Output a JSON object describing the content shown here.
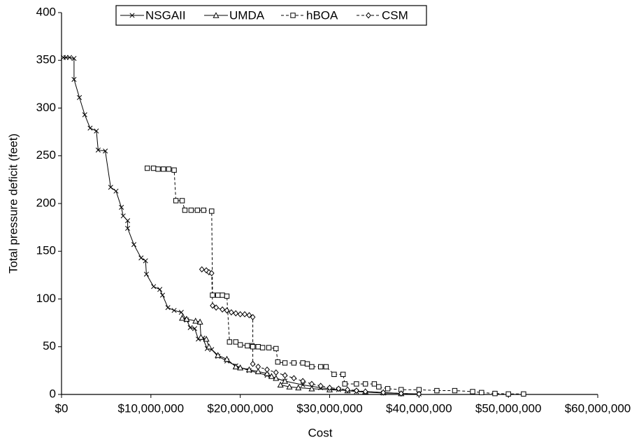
{
  "chart_data": {
    "type": "line",
    "xlabel": "Cost",
    "ylabel": "Total pressure deficit (feet)",
    "xlim": [
      0,
      60000000
    ],
    "ylim": [
      0,
      400
    ],
    "xticks": [
      {
        "value": 0,
        "label": "$0"
      },
      {
        "value": 10000000,
        "label": "$10,000,000"
      },
      {
        "value": 20000000,
        "label": "$20,000,000"
      },
      {
        "value": 30000000,
        "label": "$30,000,000"
      },
      {
        "value": 40000000,
        "label": "$40,000,000"
      },
      {
        "value": 50000000,
        "label": "$50,000,000"
      },
      {
        "value": 60000000,
        "label": "$60,000,000"
      }
    ],
    "yticks": [
      0,
      50,
      100,
      150,
      200,
      250,
      300,
      350,
      400
    ],
    "grid": false,
    "legend": "top",
    "series": [
      {
        "name": "NSGAII",
        "color": "#000000",
        "marker": "x",
        "dash": "solid",
        "x": [
          200000,
          500000,
          900000,
          1400000,
          1400000,
          2000000,
          2600000,
          3200000,
          3900000,
          4100000,
          4900000,
          5500000,
          6100000,
          6700000,
          6900000,
          7400000,
          7400000,
          8100000,
          8900000,
          9400000,
          9500000,
          10300000,
          11000000,
          11300000,
          11900000,
          12600000,
          13400000,
          14000000,
          14400000,
          14900000,
          15300000,
          15800000,
          16300000,
          16800000,
          17500000,
          18500000,
          19500000,
          21000000,
          23000000,
          25000000,
          27000000,
          29000000,
          31000000,
          33000000,
          36000000,
          40000000
        ],
        "values": [
          353,
          353,
          353,
          352,
          330,
          311,
          293,
          279,
          276,
          256,
          255,
          217,
          213,
          196,
          187,
          182,
          174,
          157,
          143,
          140,
          126,
          113,
          110,
          104,
          91,
          88,
          86,
          78,
          70,
          69,
          58,
          59,
          48,
          47,
          40,
          35,
          30,
          25,
          20,
          14,
          10,
          7,
          5,
          3,
          1.5,
          0.5
        ]
      },
      {
        "name": "UMDA",
        "color": "#000000",
        "marker": "triangle",
        "dash": "solid",
        "x": [
          13500000,
          14000000,
          15000000,
          15500000,
          15600000,
          16200000,
          16500000,
          17500000,
          18500000,
          19500000,
          20000000,
          21000000,
          22000000,
          23000000,
          23500000,
          24000000,
          25000000,
          24500000,
          25500000,
          26500000,
          28000000,
          30000000,
          32000000,
          34000000,
          36000000,
          38000000
        ],
        "values": [
          80,
          79,
          77,
          76,
          60,
          58,
          50,
          41,
          37,
          29,
          28,
          26,
          24,
          22,
          19,
          17,
          14,
          10,
          8,
          7,
          6,
          5,
          4,
          3,
          2,
          1
        ]
      },
      {
        "name": "hBOA",
        "color": "#000000",
        "marker": "square",
        "dash": "dashed",
        "x": [
          9600000,
          10300000,
          10800000,
          11400000,
          12000000,
          12600000,
          12800000,
          13500000,
          13800000,
          14500000,
          15200000,
          15900000,
          16800000,
          16900000,
          17500000,
          18000000,
          18500000,
          18800000,
          19500000,
          20000000,
          20800000,
          21300000,
          21400000,
          22000000,
          22500000,
          23200000,
          24000000,
          24200000,
          25000000,
          26000000,
          27000000,
          27500000,
          28000000,
          29000000,
          29600000,
          30500000,
          31500000,
          31700000,
          33000000,
          34000000,
          35000000,
          35500000,
          36500000,
          38000000,
          40000000,
          42000000,
          44000000,
          46000000,
          47000000,
          48500000,
          50000000,
          51700000
        ],
        "values": [
          237,
          237,
          236,
          236,
          236,
          235,
          203,
          203,
          193,
          193,
          193,
          193,
          192,
          104,
          104,
          104,
          103,
          55,
          55,
          52,
          51,
          51,
          50,
          50,
          49,
          49,
          48,
          34,
          33,
          33,
          33,
          32,
          29,
          29,
          29,
          21,
          21,
          11,
          11,
          11,
          11,
          8,
          6,
          5,
          5,
          4,
          4,
          3,
          2,
          1,
          0.5,
          0.5
        ]
      },
      {
        "name": "CSM",
        "color": "#000000",
        "marker": "diamond",
        "dash": "dashed",
        "x": [
          15700000,
          16200000,
          16500000,
          16800000,
          16900000,
          17300000,
          18000000,
          18500000,
          19000000,
          19500000,
          20000000,
          20500000,
          21000000,
          21400000,
          21400000,
          22000000,
          23000000,
          24000000,
          25000000,
          26000000,
          27000000,
          28000000,
          29000000,
          30000000,
          31000000,
          32000000,
          33000000,
          34000000,
          36000000,
          38000000,
          40000000
        ],
        "values": [
          131,
          130,
          128,
          127,
          93,
          91,
          89,
          88,
          86,
          85,
          84,
          84,
          83,
          81,
          32,
          29,
          26,
          23,
          20,
          17,
          14,
          11,
          9,
          7,
          6,
          5,
          4,
          3,
          2,
          1,
          0.5
        ]
      }
    ]
  }
}
